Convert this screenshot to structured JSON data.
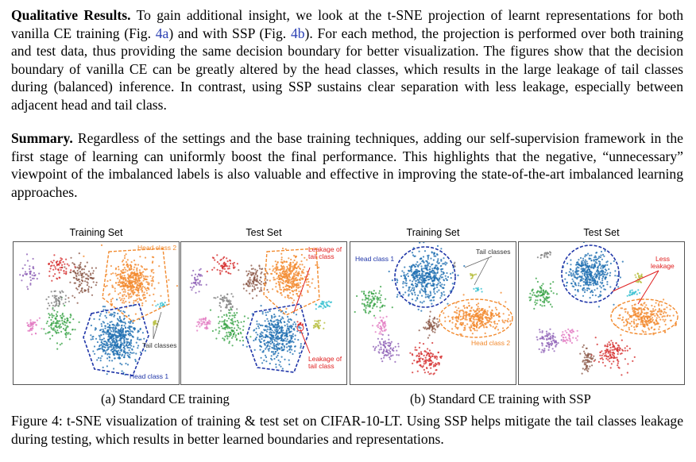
{
  "paragraph1": {
    "heading": "Qualitative Results.",
    "text_before_ref_a": " To gain additional insight, we look at the t-SNE projection of learnt representations for both vanilla CE training (Fig. ",
    "ref_a": "4a",
    "text_between_refs": ") and with SSP (Fig. ",
    "ref_b": "4b",
    "text_after_ref_b": "). For each method, the projection is performed over both training and test data, thus providing the same decision boundary for better visualization. The figures show that the decision boundary of vanilla CE can be greatly altered by the head classes, which results in the large leakage of tail classes during (balanced) inference. In contrast, using SSP sustains clear separation with less leakage, especially between adjacent head and tail class."
  },
  "paragraph2": {
    "heading": "Summary.",
    "text": " Regardless of the settings and the base training techniques, adding our self-supervision framework in the first stage of learning can uniformly boost the final performance. This highlights that the negative, “unnecessary” viewpoint of the imbalanced labels is also valuable and effective in improving the state-of-the-art imbalanced learning approaches."
  },
  "figure": {
    "panels": [
      {
        "title": "Training Set",
        "annotations": [
          "Head class 2",
          "Tail classes",
          "Head class 1"
        ]
      },
      {
        "title": "Test Set",
        "annotations": [
          "Leakage of tail class",
          "Leakage of tail class"
        ]
      },
      {
        "title": "Training Set",
        "annotations": [
          "Head class 1",
          "Tail classes",
          "Head class 2"
        ]
      },
      {
        "title": "Test Set",
        "annotations": [
          "Less leakage"
        ]
      }
    ],
    "subcaption_a": "(a) Standard CE training",
    "subcaption_b": "(b) Standard CE training with SSP",
    "caption": "Figure 4: t-SNE visualization of training & test set on CIFAR-10-LT. Using SSP helps mitigate the tail classes leakage during testing, which results in better learned boundaries and representations.",
    "colors": {
      "blue": "#1f6fb2",
      "orange": "#f28a2e",
      "green": "#3aa447",
      "red": "#d62f2f",
      "purple": "#8e62b6",
      "brown": "#8c5a4a",
      "pink": "#e27bc2",
      "gray": "#7f7f7f",
      "olive": "#b5bd3a",
      "cyan": "#35bfd0",
      "annotation_blue": "#1f35a8",
      "annotation_red": "#e02020"
    }
  }
}
